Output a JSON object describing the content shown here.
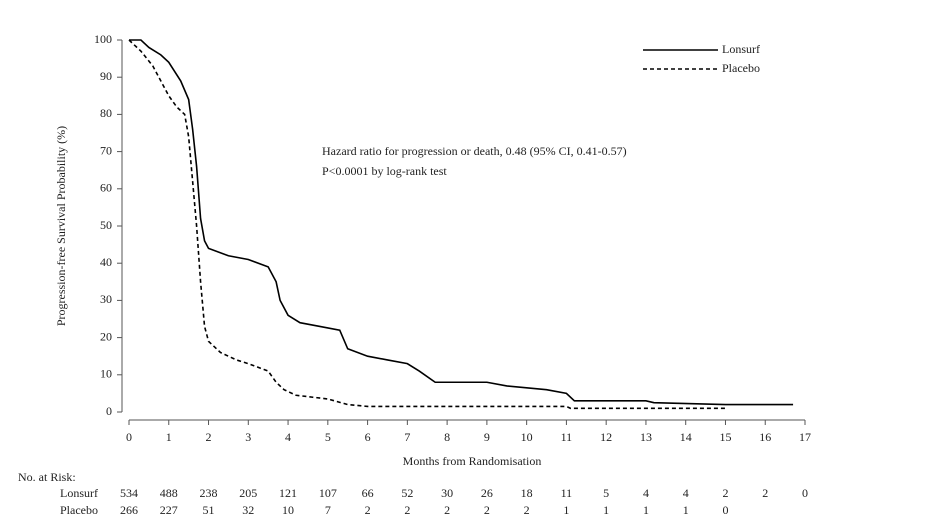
{
  "chart_data": {
    "type": "line",
    "y_label": "Progression-free Survival Probability (%)",
    "x_label": "Months from Randomisation",
    "annotations": [
      "Hazard ratio for progression or death, 0.48 (95% CI, 0.41-0.57)",
      "P<0.0001 by log-rank test"
    ],
    "xlim": [
      0,
      17
    ],
    "xticks": [
      0,
      1,
      2,
      3,
      4,
      5,
      6,
      7,
      8,
      9,
      10,
      11,
      12,
      13,
      14,
      15,
      16,
      17
    ],
    "ylim": [
      0,
      100
    ],
    "yticks": [
      0,
      10,
      20,
      30,
      40,
      50,
      60,
      70,
      80,
      90,
      100
    ],
    "legend": "top-right",
    "series": [
      {
        "name": "Lonsurf",
        "color": "#000000",
        "line_style": "solid",
        "x": [
          0,
          0.3,
          0.5,
          0.8,
          1,
          1.3,
          1.5,
          1.6,
          1.7,
          1.8,
          1.9,
          2,
          2.5,
          3,
          3.5,
          3.7,
          3.8,
          4,
          4.3,
          4.8,
          5.3,
          5.5,
          6,
          6.5,
          7,
          7.3,
          7.7,
          8,
          9,
          9.5,
          10.5,
          11,
          11.2,
          13,
          13.2,
          15,
          16.7
        ],
        "values": [
          100,
          100,
          98,
          96,
          94,
          89,
          84,
          76,
          66,
          52,
          46,
          44,
          42,
          41,
          39,
          35,
          30,
          26,
          24,
          23,
          22,
          17,
          15,
          14,
          13,
          11,
          8,
          8,
          8,
          7,
          6,
          5,
          3,
          3,
          2.5,
          2,
          2
        ]
      },
      {
        "name": "Placebo",
        "color": "#000000",
        "line_style": "dashed",
        "x": [
          0,
          0.3,
          0.6,
          0.8,
          1,
          1.2,
          1.4,
          1.5,
          1.6,
          1.7,
          1.8,
          1.9,
          2,
          2.3,
          2.7,
          3,
          3.5,
          3.7,
          3.9,
          4.2,
          4.6,
          5,
          5.5,
          6,
          11,
          11.1,
          15
        ],
        "values": [
          100,
          97,
          93,
          89,
          85,
          82,
          80,
          74,
          62,
          50,
          35,
          23,
          19,
          16,
          14,
          13,
          11,
          8,
          6,
          4.5,
          4,
          3.5,
          2,
          1.5,
          1.5,
          1,
          1
        ]
      }
    ],
    "risk_table": {
      "label": "No. at Risk:",
      "rows": [
        {
          "name": "Lonsurf",
          "values": [
            534,
            488,
            238,
            205,
            121,
            107,
            66,
            52,
            30,
            26,
            18,
            11,
            5,
            4,
            4,
            2,
            2,
            0
          ]
        },
        {
          "name": "Placebo",
          "values": [
            266,
            227,
            51,
            32,
            10,
            7,
            2,
            2,
            2,
            2,
            2,
            1,
            1,
            1,
            1,
            0
          ]
        }
      ]
    }
  }
}
